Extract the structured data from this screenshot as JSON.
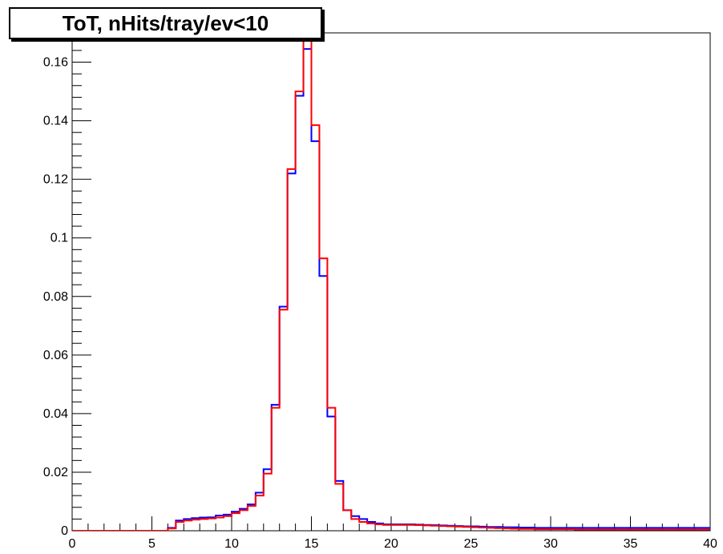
{
  "chart_data": {
    "type": "line",
    "title": "ToT, nHits/tray/ev<10",
    "xlabel": "",
    "ylabel": "",
    "xlim": [
      0,
      40
    ],
    "ylim": [
      0,
      0.17
    ],
    "x_ticks": [
      0,
      5,
      10,
      15,
      20,
      25,
      30,
      35,
      40
    ],
    "y_ticks": [
      0,
      0.02,
      0.04,
      0.06,
      0.08,
      0.1,
      0.12,
      0.14,
      0.16
    ],
    "x_tick_labels": [
      "0",
      "5",
      "10",
      "15",
      "20",
      "25",
      "30",
      "35",
      "40"
    ],
    "y_tick_labels": [
      "0",
      "0.02",
      "0.04",
      "0.06",
      "0.08",
      "0.1",
      "0.12",
      "0.14",
      "0.16"
    ],
    "bin_width": 0.5,
    "bin_edges_start": 0,
    "grid": false,
    "legend": "none",
    "series": [
      {
        "color": "#0000ff",
        "values": [
          0,
          0,
          0,
          0,
          0,
          0,
          0,
          0,
          0,
          0,
          0,
          0,
          0.001,
          0.0035,
          0.004,
          0.0043,
          0.0045,
          0.0046,
          0.0052,
          0.0055,
          0.0065,
          0.0075,
          0.009,
          0.013,
          0.021,
          0.043,
          0.0765,
          0.122,
          0.1485,
          0.1645,
          0.133,
          0.087,
          0.039,
          0.017,
          0.007,
          0.005,
          0.004,
          0.003,
          0.0025,
          0.0022,
          0.0022,
          0.0022,
          0.0022,
          0.0021,
          0.002,
          0.0019,
          0.0018,
          0.0017,
          0.0016,
          0.0015,
          0.0015,
          0.0014,
          0.0013,
          0.0013,
          0.0012,
          0.0012,
          0.0011,
          0.0011,
          0.001,
          0.001,
          0.001,
          0.001,
          0.001,
          0.001,
          0.001,
          0.001,
          0.001,
          0.001,
          0.001,
          0.001,
          0.001,
          0.001,
          0.001,
          0.001,
          0.001,
          0.001,
          0.001,
          0.001,
          0.001,
          0.001
        ]
      },
      {
        "color": "#ff0000",
        "values": [
          0,
          0,
          0,
          0,
          0,
          0,
          0,
          0,
          0,
          0,
          0,
          0,
          0.0008,
          0.003,
          0.0035,
          0.0038,
          0.004,
          0.0042,
          0.0045,
          0.005,
          0.006,
          0.007,
          0.0085,
          0.012,
          0.0195,
          0.042,
          0.0755,
          0.1235,
          0.15,
          0.1705,
          0.1385,
          0.093,
          0.042,
          0.016,
          0.007,
          0.004,
          0.003,
          0.0025,
          0.0022,
          0.002,
          0.002,
          0.002,
          0.002,
          0.0019,
          0.0018,
          0.0017,
          0.0016,
          0.0015,
          0.0014,
          0.0013,
          0.0012,
          0.0011,
          0.001,
          0.0009,
          0.0008,
          0.0007,
          0.0006,
          0.0006,
          0.0005,
          0.0005,
          0.0005,
          0.0005,
          0.0005,
          0.0004,
          0.0004,
          0.0004,
          0.0004,
          0.0004,
          0.0004,
          0.0004,
          0.0004,
          0.0004,
          0.0004,
          0.0004,
          0.0004,
          0.0004,
          0.0004,
          0.0004,
          0.0004,
          0.0004
        ]
      }
    ]
  }
}
